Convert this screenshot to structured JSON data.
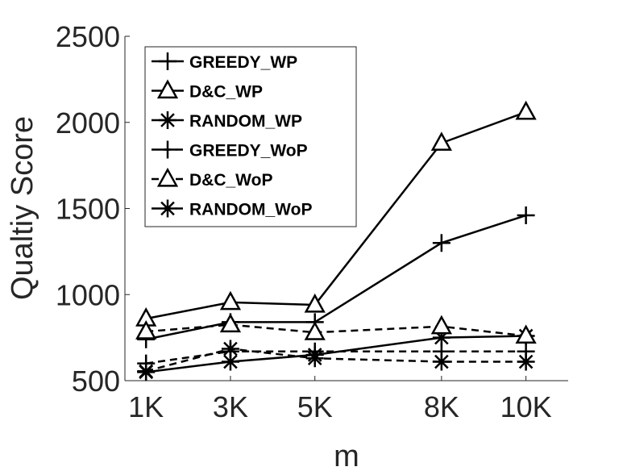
{
  "chart_data": {
    "type": "line",
    "title": "",
    "xlabel": "m",
    "ylabel": "Qualtiy Score",
    "categories": [
      "1K",
      "3K",
      "5K",
      "8K",
      "10K"
    ],
    "x": [
      1,
      3,
      5,
      8,
      10
    ],
    "xlim": [
      0.5,
      11
    ],
    "ylim": [
      500,
      2500
    ],
    "yticks": [
      500,
      1000,
      1500,
      2000,
      2500
    ],
    "grid": false,
    "legend_position": "top-left",
    "series": [
      {
        "name": "GREEDY_WP",
        "marker": "plus",
        "line": "solid",
        "values": [
          740,
          840,
          840,
          1300,
          1460
        ]
      },
      {
        "name": "D&C_WP",
        "marker": "triangle",
        "line": "solid",
        "values": [
          860,
          955,
          940,
          1880,
          2060
        ]
      },
      {
        "name": "RANDOM_WP",
        "marker": "asterisk",
        "line": "solid",
        "values": [
          550,
          610,
          650,
          750,
          760
        ]
      },
      {
        "name": "GREEDY_WoP",
        "marker": "plus",
        "line": "dashed",
        "values": [
          600,
          670,
          670,
          670,
          670
        ]
      },
      {
        "name": "D&C_WoP",
        "marker": "triangle",
        "line": "dashed",
        "values": [
          785,
          825,
          780,
          815,
          760
        ]
      },
      {
        "name": "RANDOM_WoP",
        "marker": "asterisk",
        "line": "dashed",
        "values": [
          555,
          685,
          630,
          610,
          610
        ]
      }
    ]
  }
}
